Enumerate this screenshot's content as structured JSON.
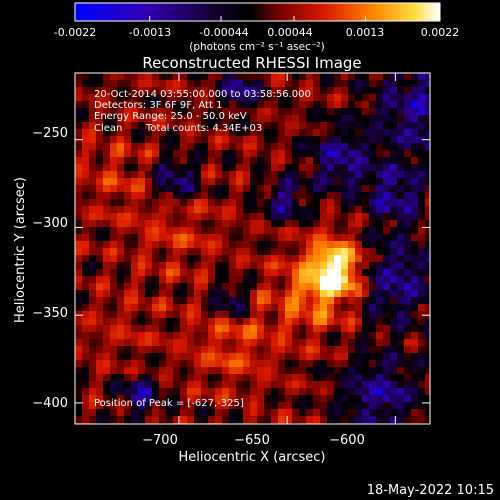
{
  "colorbar": {
    "ticks": [
      "-0.0022",
      "-0.0013",
      "-0.00044",
      "0.00044",
      "0.0013",
      "0.0022"
    ],
    "tick_values": [
      -0.0022,
      -0.0013,
      -0.00044,
      0.00044,
      0.0013,
      0.0022
    ],
    "range": [
      -0.0022,
      0.0022
    ],
    "unit_label": "(photons cm⁻² s⁻¹ asec⁻²)"
  },
  "chart_data": {
    "type": "heatmap",
    "title": "Reconstructed RHESSI Image",
    "xlabel": "Heliocentric X (arcsec)",
    "ylabel": "Heliocentric Y (arcsec)",
    "xlim": [
      -748,
      -584
    ],
    "ylim": [
      -412,
      -212
    ],
    "xticks": [
      -700,
      -650,
      -600
    ],
    "xtick_labels": [
      "−700",
      "−650",
      "−600"
    ],
    "yticks": [
      -400,
      -350,
      -300,
      -250
    ],
    "ytick_labels": [
      "−400",
      "−350",
      "−300",
      "−250"
    ],
    "peak": {
      "x": -627,
      "y": -325
    },
    "annotations": {
      "time_range": "20-Oct-2014 03:55:00.000 to 03:58:56.000",
      "detectors": "Detectors: 3F 6F 9F, Att 1",
      "energy_range": "Energy Range: 25.0 - 50.0 keV",
      "method": "Clean",
      "total_counts": "Total counts: 4.34E+03",
      "peak_position": "Position of Peak = [-627,-325]"
    }
  },
  "footer": {
    "date": "18-May-2022 10:15"
  }
}
